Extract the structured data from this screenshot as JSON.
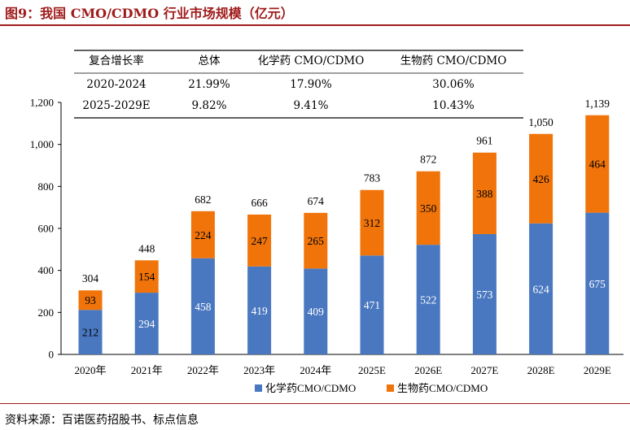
{
  "header": {
    "title": "图9：我国 CMO/CDMO 行业市场规模（亿元）"
  },
  "footer": {
    "source": "资料来源：百诺医药招股书、标点信息"
  },
  "growth_table": {
    "headers": [
      "复合增长率",
      "总体",
      "化学药 CMO/CDMO",
      "生物药 CMO/CDMO"
    ],
    "rows": [
      [
        "2020-2024",
        "21.99%",
        "17.90%",
        "30.06%"
      ],
      [
        "2025-2029E",
        "9.82%",
        "9.41%",
        "10.43%"
      ]
    ]
  },
  "chart_data": {
    "type": "bar",
    "stacked": true,
    "title": "图9：我国 CMO/CDMO 行业市场规模（亿元）",
    "categories": [
      "2020年",
      "2021年",
      "2022年",
      "2023年",
      "2024年",
      "2025E",
      "2026E",
      "2027E",
      "2028E",
      "2029E"
    ],
    "series": [
      {
        "name": "化学药CMO/CDMO",
        "color": "#4a78c0",
        "values": [
          212,
          294,
          458,
          419,
          409,
          471,
          522,
          573,
          624,
          675
        ]
      },
      {
        "name": "生物药CMO/CDMO",
        "color": "#f0740a",
        "values": [
          93,
          154,
          224,
          247,
          265,
          312,
          350,
          388,
          426,
          464
        ]
      }
    ],
    "totals": [
      "304",
      "448",
      "682",
      "666",
      "674",
      "783",
      "872",
      "961",
      "1,050",
      "1,139"
    ],
    "yticks": [
      "0",
      "200",
      "400",
      "600",
      "800",
      "1,000",
      "1,200"
    ],
    "ylim": [
      0,
      1200
    ],
    "legend_position": "bottom",
    "grid": false
  }
}
